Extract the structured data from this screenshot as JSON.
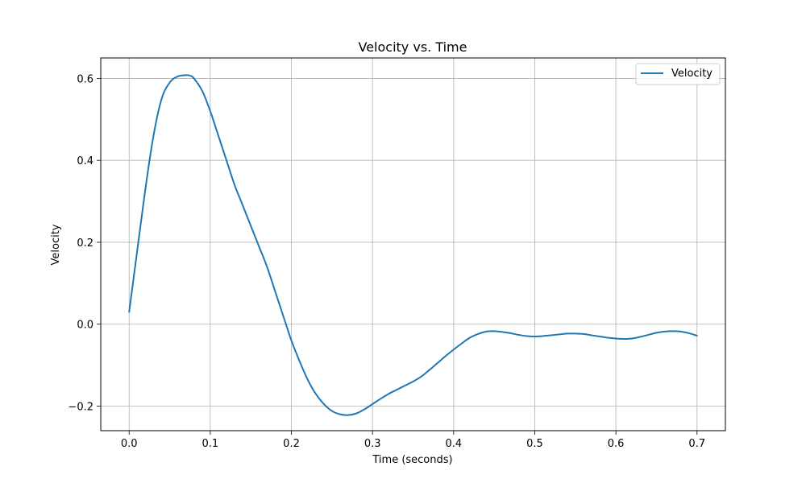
{
  "chart_data": {
    "type": "line",
    "title": "Velocity vs. Time",
    "xlabel": "Time (seconds)",
    "ylabel": "Velocity",
    "xlim": [
      -0.035,
      0.735
    ],
    "ylim": [
      -0.26,
      0.65
    ],
    "x_ticks": [
      0.0,
      0.1,
      0.2,
      0.3,
      0.4,
      0.5,
      0.6,
      0.7
    ],
    "x_tick_labels": [
      "0.0",
      "0.1",
      "0.2",
      "0.3",
      "0.4",
      "0.5",
      "0.6",
      "0.7"
    ],
    "y_ticks": [
      -0.2,
      0.0,
      0.2,
      0.4,
      0.6
    ],
    "y_tick_labels": [
      "−0.2",
      "0.0",
      "0.2",
      "0.4",
      "0.6"
    ],
    "grid": true,
    "legend_position": "top-right",
    "series": [
      {
        "name": "Velocity",
        "color": "#1f77b4",
        "x": [
          0.0,
          0.01,
          0.02,
          0.03,
          0.04,
          0.05,
          0.06,
          0.07,
          0.075,
          0.08,
          0.09,
          0.1,
          0.11,
          0.12,
          0.13,
          0.14,
          0.15,
          0.16,
          0.17,
          0.18,
          0.19,
          0.2,
          0.21,
          0.22,
          0.23,
          0.24,
          0.25,
          0.26,
          0.27,
          0.28,
          0.29,
          0.3,
          0.31,
          0.32,
          0.33,
          0.34,
          0.35,
          0.36,
          0.37,
          0.38,
          0.39,
          0.4,
          0.41,
          0.42,
          0.43,
          0.44,
          0.45,
          0.46,
          0.47,
          0.48,
          0.49,
          0.5,
          0.51,
          0.52,
          0.53,
          0.54,
          0.55,
          0.56,
          0.57,
          0.58,
          0.59,
          0.6,
          0.61,
          0.62,
          0.63,
          0.64,
          0.65,
          0.66,
          0.67,
          0.68,
          0.69,
          0.7
        ],
        "y": [
          0.03,
          0.18,
          0.33,
          0.46,
          0.55,
          0.59,
          0.605,
          0.608,
          0.607,
          0.6,
          0.57,
          0.52,
          0.46,
          0.4,
          0.34,
          0.29,
          0.24,
          0.19,
          0.14,
          0.08,
          0.02,
          -0.04,
          -0.09,
          -0.135,
          -0.17,
          -0.195,
          -0.212,
          -0.22,
          -0.222,
          -0.218,
          -0.208,
          -0.195,
          -0.182,
          -0.17,
          -0.16,
          -0.15,
          -0.14,
          -0.128,
          -0.112,
          -0.095,
          -0.078,
          -0.062,
          -0.047,
          -0.033,
          -0.024,
          -0.018,
          -0.017,
          -0.019,
          -0.022,
          -0.026,
          -0.029,
          -0.03,
          -0.029,
          -0.027,
          -0.025,
          -0.023,
          -0.023,
          -0.024,
          -0.027,
          -0.03,
          -0.033,
          -0.035,
          -0.036,
          -0.035,
          -0.031,
          -0.026,
          -0.021,
          -0.018,
          -0.017,
          -0.018,
          -0.022,
          -0.028
        ]
      }
    ]
  }
}
